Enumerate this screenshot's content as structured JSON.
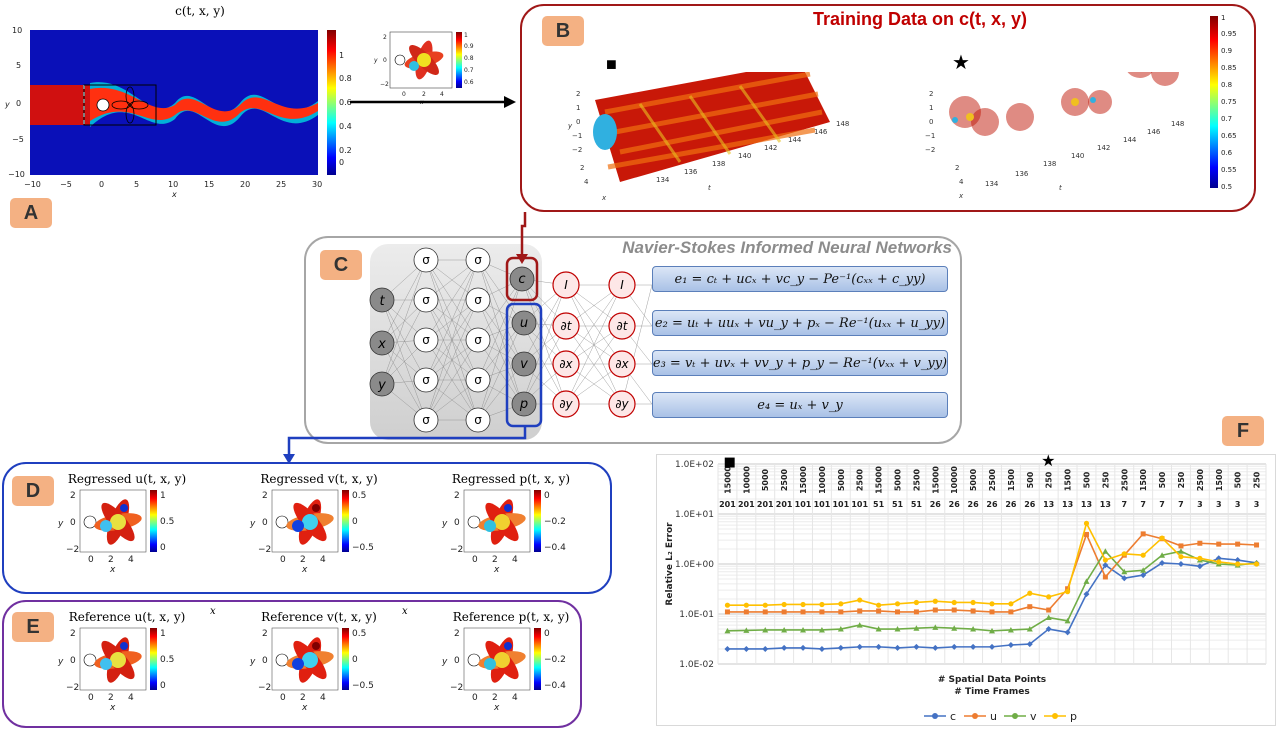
{
  "badges": {
    "a": "A",
    "b": "B",
    "c": "C",
    "d": "D",
    "e": "E",
    "f": "F"
  },
  "panel_a": {
    "title": "c(t, x, y)",
    "xlabel": "x",
    "ylabel": "y",
    "xticks": [
      "−10",
      "−5",
      "0",
      "5",
      "10",
      "15",
      "20",
      "25",
      "30"
    ],
    "yticks": [
      "10",
      "5",
      "0",
      "−5",
      "−10"
    ],
    "cbar_ticks": [
      "1",
      "0.8",
      "0.6",
      "0.4",
      "0.2",
      "0"
    ]
  },
  "inset": {
    "xlabel": "x",
    "ylabel": "y",
    "xticks": [
      "0",
      "2",
      "4"
    ],
    "yticks": [
      "2",
      "0",
      "−2"
    ],
    "cbar_ticks": [
      "1",
      "0.9",
      "0.8",
      "0.7",
      "0.6"
    ]
  },
  "panel_b": {
    "title": "Training Data on c(t, x, y)",
    "marker_left": "■",
    "marker_right": "★",
    "yticks": [
      "2",
      "1",
      "0",
      "−1",
      "−2"
    ],
    "xticks": [
      "2",
      "4"
    ],
    "tticks": [
      "134",
      "136",
      "138",
      "140",
      "142",
      "144",
      "146",
      "148"
    ],
    "xlabel": "x",
    "ylabel": "y",
    "tlabel": "t",
    "cbar_ticks": [
      "1",
      "0.95",
      "0.9",
      "0.85",
      "0.8",
      "0.75",
      "0.7",
      "0.65",
      "0.6",
      "0.55",
      "0.5"
    ]
  },
  "panel_c": {
    "title": "Navier-Stokes Informed Neural Networks",
    "inputs": [
      "t",
      "x",
      "y"
    ],
    "hidden": "σ",
    "outputs": [
      "c",
      "u",
      "v",
      "p"
    ],
    "ops_col1": [
      "I",
      "∂t",
      "∂x",
      "∂y"
    ],
    "ops_col2": [
      "I",
      "∂t",
      "∂x",
      "∂y"
    ],
    "equations": [
      "e₁ = cₜ + ucₓ + vc_y − Pe⁻¹(cₓₓ + c_yy)",
      "e₂ = uₜ + uuₓ + vu_y + pₓ − Re⁻¹(uₓₓ + u_yy)",
      "e₃ = vₜ + uvₓ + vv_y + p_y − Re⁻¹(vₓₓ + v_yy)",
      "e₄ = uₓ + v_y"
    ]
  },
  "panel_d": {
    "titles": [
      "Regressed u(t, x, y)",
      "Regressed v(t, x, y)",
      "Regressed p(t, x, y)"
    ],
    "cbars": [
      [
        "1",
        "0.5",
        "0"
      ],
      [
        "0.5",
        "0",
        "−0.5"
      ],
      [
        "0",
        "−0.2",
        "−0.4"
      ]
    ],
    "xticks": [
      "0",
      "2",
      "4"
    ],
    "yticks": [
      "2",
      "0",
      "−2"
    ],
    "xlabel": "x",
    "ylabel": "y"
  },
  "panel_e": {
    "titles": [
      "Reference u(t, x, y)",
      "Reference v(t, x, y)",
      "Reference p(t, x, y)"
    ],
    "cbars": [
      [
        "1",
        "0.5",
        "0"
      ],
      [
        "0.5",
        "0",
        "−0.5"
      ],
      [
        "0",
        "−0.2",
        "−0.4"
      ]
    ],
    "stray_labels": [
      "x",
      "x"
    ],
    "xticks": [
      "0",
      "2",
      "4"
    ],
    "yticks": [
      "2",
      "0",
      "−2"
    ],
    "xlabel": "x",
    "ylabel": "y"
  },
  "chart_data": {
    "type": "line",
    "xlabel_line1": "# Spatial Data Points",
    "xlabel_line2": "# Time Frames",
    "ylabel": "Relative L₂ Error",
    "yscale": "log",
    "ylim": [
      0.01,
      100
    ],
    "ytick_labels": [
      "1.0E+02",
      "1.0E+01",
      "1.0E+00",
      "1.0E-01",
      "1.0E-02"
    ],
    "spatial_points": [
      "15000",
      "10000",
      "5000",
      "2500",
      "15000",
      "10000",
      "5000",
      "2500",
      "15000",
      "5000",
      "2500",
      "15000",
      "10000",
      "5000",
      "2500",
      "1500",
      "500",
      "250",
      "1500",
      "500",
      "250",
      "2500",
      "1500",
      "500",
      "250",
      "2500",
      "1500",
      "500",
      "250"
    ],
    "time_frames": [
      "201",
      "201",
      "201",
      "201",
      "101",
      "101",
      "101",
      "101",
      "51",
      "51",
      "51",
      "26",
      "26",
      "26",
      "26",
      "26",
      "26",
      "13",
      "13",
      "13",
      "13",
      "7",
      "7",
      "7",
      "7",
      "3",
      "3",
      "3",
      "3"
    ],
    "marker_square_index": 0,
    "marker_star_index": 17,
    "grid": true,
    "legend_position": "bottom",
    "series": [
      {
        "name": "c",
        "color": "#4472c4",
        "marker": "diamond",
        "values": [
          0.02,
          0.02,
          0.02,
          0.021,
          0.021,
          0.02,
          0.021,
          0.022,
          0.022,
          0.021,
          0.022,
          0.021,
          0.022,
          0.022,
          0.022,
          0.024,
          0.025,
          0.05,
          0.043,
          0.25,
          0.95,
          0.52,
          0.6,
          1.05,
          1.0,
          0.9,
          1.3,
          1.2,
          1.05
        ]
      },
      {
        "name": "u",
        "color": "#ed7d31",
        "marker": "square",
        "values": [
          0.11,
          0.11,
          0.11,
          0.11,
          0.11,
          0.11,
          0.11,
          0.115,
          0.115,
          0.11,
          0.11,
          0.12,
          0.12,
          0.115,
          0.11,
          0.11,
          0.14,
          0.12,
          0.32,
          3.9,
          0.55,
          1.5,
          4.0,
          3.2,
          2.3,
          2.6,
          2.5,
          2.5,
          2.4
        ]
      },
      {
        "name": "v",
        "color": "#70ad47",
        "marker": "triangle",
        "values": [
          0.046,
          0.047,
          0.048,
          0.048,
          0.048,
          0.048,
          0.05,
          0.06,
          0.05,
          0.05,
          0.052,
          0.054,
          0.052,
          0.05,
          0.046,
          0.048,
          0.05,
          0.085,
          0.073,
          0.45,
          1.8,
          0.7,
          0.75,
          1.5,
          1.8,
          1.2,
          1.0,
          0.95,
          1.05
        ]
      },
      {
        "name": "p",
        "color": "#ffc000",
        "marker": "circle",
        "values": [
          0.15,
          0.15,
          0.15,
          0.155,
          0.155,
          0.155,
          0.16,
          0.19,
          0.15,
          0.16,
          0.17,
          0.18,
          0.17,
          0.17,
          0.16,
          0.16,
          0.26,
          0.22,
          0.28,
          6.5,
          1.2,
          1.6,
          1.5,
          3.3,
          1.4,
          1.3,
          1.1,
          1.0,
          1.0
        ]
      }
    ]
  }
}
